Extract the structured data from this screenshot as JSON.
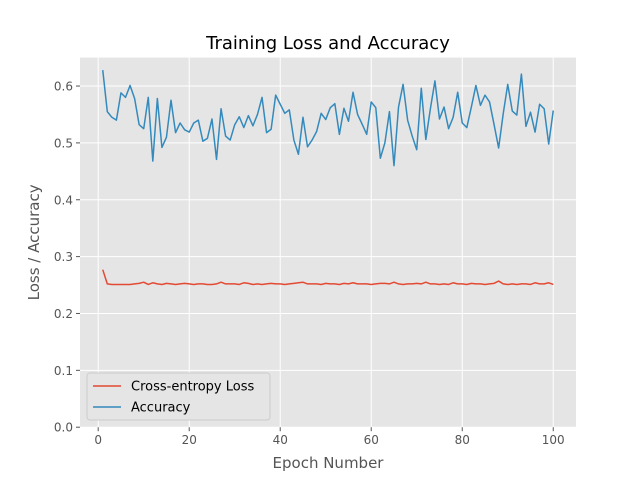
{
  "chart_data": {
    "type": "line",
    "title": "Training Loss and Accuracy",
    "xlabel": "Epoch Number",
    "ylabel": "Loss / Accuracy",
    "xlim": [
      -4,
      105
    ],
    "ylim": [
      0.0,
      0.65
    ],
    "xticks": [
      0,
      20,
      40,
      60,
      80,
      100
    ],
    "xtick_labels": [
      "0",
      "20",
      "40",
      "60",
      "80",
      "100"
    ],
    "yticks": [
      0.0,
      0.1,
      0.2,
      0.3,
      0.4,
      0.5,
      0.6
    ],
    "ytick_labels": [
      "0.0",
      "0.1",
      "0.2",
      "0.3",
      "0.4",
      "0.5",
      "0.6"
    ],
    "grid": true,
    "legend_position": "lower-left",
    "colors": {
      "plot_background": "#e5e5e5",
      "grid": "#ffffff",
      "loss": "#e24a33",
      "accuracy": "#348abd"
    },
    "x_start": 1,
    "x_step": 1,
    "series": [
      {
        "name": "Cross-entropy Loss",
        "color": "#e24a33",
        "values": [
          0.277,
          0.252,
          0.251,
          0.251,
          0.251,
          0.251,
          0.251,
          0.252,
          0.253,
          0.255,
          0.251,
          0.254,
          0.252,
          0.251,
          0.253,
          0.252,
          0.251,
          0.252,
          0.253,
          0.252,
          0.251,
          0.252,
          0.252,
          0.251,
          0.251,
          0.252,
          0.255,
          0.252,
          0.252,
          0.252,
          0.251,
          0.254,
          0.253,
          0.251,
          0.252,
          0.251,
          0.252,
          0.253,
          0.252,
          0.252,
          0.251,
          0.252,
          0.253,
          0.254,
          0.255,
          0.252,
          0.252,
          0.252,
          0.251,
          0.253,
          0.252,
          0.252,
          0.251,
          0.253,
          0.252,
          0.254,
          0.252,
          0.252,
          0.252,
          0.251,
          0.252,
          0.253,
          0.253,
          0.252,
          0.255,
          0.252,
          0.251,
          0.252,
          0.252,
          0.253,
          0.252,
          0.255,
          0.252,
          0.252,
          0.251,
          0.252,
          0.251,
          0.254,
          0.252,
          0.252,
          0.251,
          0.253,
          0.252,
          0.252,
          0.251,
          0.252,
          0.253,
          0.257,
          0.252,
          0.251,
          0.252,
          0.251,
          0.252,
          0.252,
          0.251,
          0.254,
          0.252,
          0.252,
          0.254,
          0.251
        ]
      },
      {
        "name": "Accuracy",
        "color": "#348abd",
        "values": [
          0.628,
          0.555,
          0.545,
          0.54,
          0.588,
          0.58,
          0.601,
          0.578,
          0.532,
          0.525,
          0.58,
          0.468,
          0.578,
          0.492,
          0.51,
          0.575,
          0.518,
          0.535,
          0.523,
          0.519,
          0.535,
          0.54,
          0.503,
          0.508,
          0.542,
          0.471,
          0.56,
          0.512,
          0.505,
          0.532,
          0.546,
          0.527,
          0.548,
          0.53,
          0.55,
          0.58,
          0.518,
          0.524,
          0.584,
          0.568,
          0.552,
          0.558,
          0.505,
          0.48,
          0.545,
          0.493,
          0.505,
          0.52,
          0.552,
          0.541,
          0.562,
          0.569,
          0.515,
          0.561,
          0.538,
          0.589,
          0.55,
          0.533,
          0.515,
          0.572,
          0.562,
          0.473,
          0.5,
          0.555,
          0.46,
          0.563,
          0.603,
          0.54,
          0.512,
          0.488,
          0.596,
          0.506,
          0.56,
          0.609,
          0.542,
          0.563,
          0.525,
          0.545,
          0.589,
          0.535,
          0.527,
          0.563,
          0.601,
          0.566,
          0.584,
          0.572,
          0.532,
          0.491,
          0.551,
          0.603,
          0.556,
          0.549,
          0.621,
          0.529,
          0.554,
          0.519,
          0.568,
          0.56,
          0.498,
          0.557
        ]
      }
    ]
  }
}
